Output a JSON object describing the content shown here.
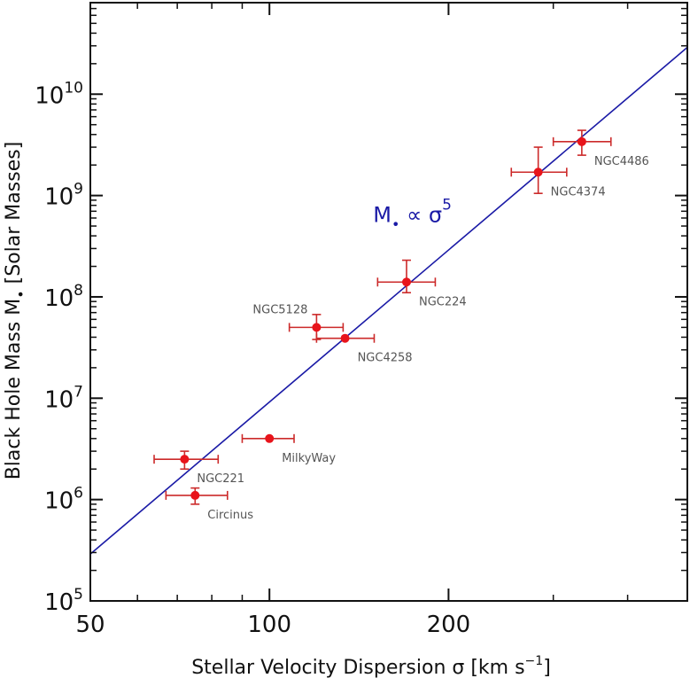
{
  "chart_data": {
    "type": "scatter",
    "title": "",
    "xlabel": "Stellar Velocity Dispersion σ [km s",
    "xlabel_sup": "−1",
    "xlabel_end": "]",
    "ylabel": "Black Hole Mass M",
    "ylabel_sub": "•",
    "ylabel_end": " [Solar Masses]",
    "xscale": "log",
    "yscale": "log",
    "xlim": [
      50,
      504
    ],
    "ylim": [
      100000,
      80000000000
    ],
    "x_ticks": [
      {
        "value": 50,
        "label": "50"
      },
      {
        "value": 100,
        "label": "100"
      },
      {
        "value": 200,
        "label": "200"
      }
    ],
    "x_minor_ticks": [
      60,
      70,
      80,
      90,
      300,
      400
    ],
    "y_ticks": [
      {
        "value": 100000,
        "base": "10",
        "exp": "5"
      },
      {
        "value": 1000000,
        "base": "10",
        "exp": "6"
      },
      {
        "value": 10000000,
        "base": "10",
        "exp": "7"
      },
      {
        "value": 100000000,
        "base": "10",
        "exp": "8"
      },
      {
        "value": 1000000000,
        "base": "10",
        "exp": "9"
      },
      {
        "value": 10000000000,
        "base": "10",
        "exp": "10"
      }
    ],
    "grid": false,
    "series": [
      {
        "name": "galaxies",
        "color": "#e8141b",
        "errorbar_color": "#cc2a2a",
        "points": [
          {
            "label": "NGC221",
            "x": 72,
            "y": 2500000,
            "xerr": [
              64,
              82
            ],
            "yerr": [
              2000000,
              3000000
            ],
            "label_pos": "below-right"
          },
          {
            "label": "Circinus",
            "x": 75,
            "y": 1100000,
            "xerr": [
              67,
              85
            ],
            "yerr": [
              900000,
              1300000
            ],
            "label_pos": "below-right"
          },
          {
            "label": "MilkyWay",
            "x": 100,
            "y": 4000000,
            "xerr": [
              90,
              110
            ],
            "yerr": null,
            "label_pos": "below-right"
          },
          {
            "label": "NGC5128",
            "x": 120,
            "y": 50000000,
            "xerr": [
              108,
              133
            ],
            "yerr": [
              38000000,
              67000000
            ],
            "label_pos": "above-left"
          },
          {
            "label": "NGC4258",
            "x": 134,
            "y": 39000000,
            "xerr": [
              120,
              150
            ],
            "yerr": null,
            "label_pos": "below-right"
          },
          {
            "label": "NGC224",
            "x": 170,
            "y": 140000000,
            "xerr": [
              152,
              190
            ],
            "yerr": [
              110000000,
              230000000
            ],
            "label_pos": "below-right"
          },
          {
            "label": "NGC4374",
            "x": 283,
            "y": 1700000000,
            "xerr": [
              255,
              316
            ],
            "yerr": [
              1050000000,
              3000000000
            ],
            "label_pos": "below-right"
          },
          {
            "label": "NGC4486",
            "x": 335,
            "y": 3400000000,
            "xerr": [
              300,
              375
            ],
            "yerr": [
              2500000000,
              4400000000
            ],
            "label_pos": "below-right"
          }
        ]
      }
    ],
    "fit_line": {
      "name": "M• ∝ σ^5",
      "color": "#1a1aa6",
      "slope": 5,
      "x": [
        50,
        504
      ],
      "y": [
        290000,
        29000000000
      ]
    },
    "annotations": [
      {
        "text_main": "M",
        "text_sub": "•",
        "text_rel": " ∝ ",
        "text_sym": "σ",
        "text_sup": "5",
        "x": 160,
        "y": 700000000
      }
    ]
  }
}
